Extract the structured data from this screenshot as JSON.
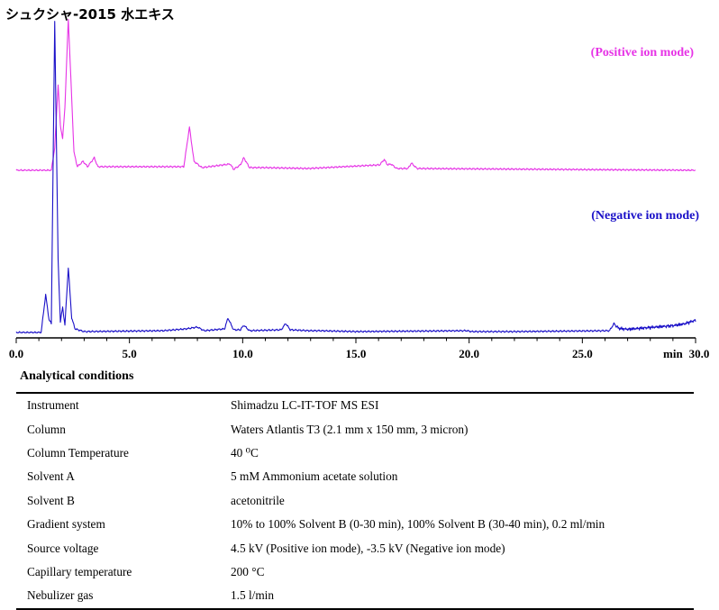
{
  "title": "シュクシャ-2015 水エキス",
  "chart_data": {
    "type": "line",
    "xlabel": "min",
    "xlim": [
      0.0,
      30.0
    ],
    "x_ticks": [
      "0.0",
      "5.0",
      "10.0",
      "15.0",
      "20.0",
      "25.0",
      "30.0"
    ],
    "series": [
      {
        "name": "(Positive ion mode)",
        "color": "#e633e6",
        "baseline": 0,
        "points": [
          [
            0.0,
            0
          ],
          [
            1.55,
            0
          ],
          [
            1.7,
            25
          ],
          [
            1.85,
            95
          ],
          [
            1.95,
            50
          ],
          [
            2.05,
            35
          ],
          [
            2.15,
            70
          ],
          [
            2.3,
            168
          ],
          [
            2.45,
            80
          ],
          [
            2.55,
            20
          ],
          [
            2.7,
            4
          ],
          [
            2.95,
            10
          ],
          [
            3.15,
            4
          ],
          [
            3.45,
            14
          ],
          [
            3.6,
            4
          ],
          [
            7.4,
            4
          ],
          [
            7.65,
            48
          ],
          [
            7.85,
            10
          ],
          [
            8.2,
            3
          ],
          [
            9.45,
            7
          ],
          [
            9.6,
            1
          ],
          [
            9.9,
            6
          ],
          [
            10.05,
            14
          ],
          [
            10.3,
            3
          ],
          [
            10.9,
            3
          ],
          [
            12.9,
            2
          ],
          [
            16.05,
            6
          ],
          [
            16.25,
            12
          ],
          [
            16.4,
            6
          ],
          [
            16.55,
            7
          ],
          [
            16.8,
            2
          ],
          [
            17.3,
            2
          ],
          [
            17.45,
            8
          ],
          [
            17.7,
            2
          ],
          [
            30.0,
            0
          ]
        ]
      },
      {
        "name": "(Negative ion mode)",
        "color": "#1a10c8",
        "baseline": 0,
        "points": [
          [
            0.0,
            0
          ],
          [
            1.1,
            0
          ],
          [
            1.3,
            42
          ],
          [
            1.45,
            14
          ],
          [
            1.55,
            10
          ],
          [
            1.7,
            345
          ],
          [
            1.85,
            80
          ],
          [
            1.95,
            12
          ],
          [
            2.05,
            28
          ],
          [
            2.15,
            8
          ],
          [
            2.3,
            72
          ],
          [
            2.45,
            16
          ],
          [
            2.6,
            4
          ],
          [
            3.0,
            1
          ],
          [
            6.5,
            2
          ],
          [
            7.5,
            4
          ],
          [
            8.0,
            6
          ],
          [
            8.3,
            2
          ],
          [
            9.2,
            4
          ],
          [
            9.35,
            16
          ],
          [
            9.6,
            3
          ],
          [
            9.9,
            3
          ],
          [
            10.05,
            8
          ],
          [
            10.3,
            2
          ],
          [
            11.7,
            3
          ],
          [
            11.9,
            10
          ],
          [
            12.1,
            3
          ],
          [
            12.9,
            2
          ],
          [
            13.4,
            2
          ],
          [
            15.0,
            1
          ],
          [
            19.9,
            2
          ],
          [
            20.1,
            1
          ],
          [
            22.0,
            1
          ],
          [
            26.2,
            2
          ],
          [
            26.4,
            10
          ],
          [
            26.6,
            3
          ],
          [
            27.0,
            2
          ],
          [
            27.5,
            3
          ],
          [
            28.0,
            4
          ],
          [
            28.5,
            5
          ],
          [
            29.0,
            6
          ],
          [
            29.5,
            8
          ],
          [
            30.0,
            12
          ]
        ]
      }
    ]
  },
  "conditions": {
    "heading": "Analytical conditions",
    "rows": [
      {
        "label": "Instrument",
        "value": "Shimadzu LC-IT-TOF MS ESI"
      },
      {
        "label": "Column",
        "value": "Waters Atlantis T3 (2.1 mm x 150 mm, 3 micron)"
      },
      {
        "label": "Column Temperature",
        "value": "40 ⁰C"
      },
      {
        "label": "Solvent A",
        "value": "5 mM Ammonium acetate solution"
      },
      {
        "label": "Solvent B",
        "value": "acetonitrile"
      },
      {
        "label": "Gradient system",
        "value": "10% to 100% Solvent B (0-30 min), 100% Solvent B (30-40 min), 0.2 ml/min"
      },
      {
        "label": "Source voltage",
        "value": "4.5 kV (Positive ion mode), -3.5 kV (Negative ion mode)"
      },
      {
        "label": "Capillary temperature",
        "value": "200 °C"
      },
      {
        "label": "Nebulizer gas",
        "value": "1.5 l/min"
      }
    ]
  }
}
